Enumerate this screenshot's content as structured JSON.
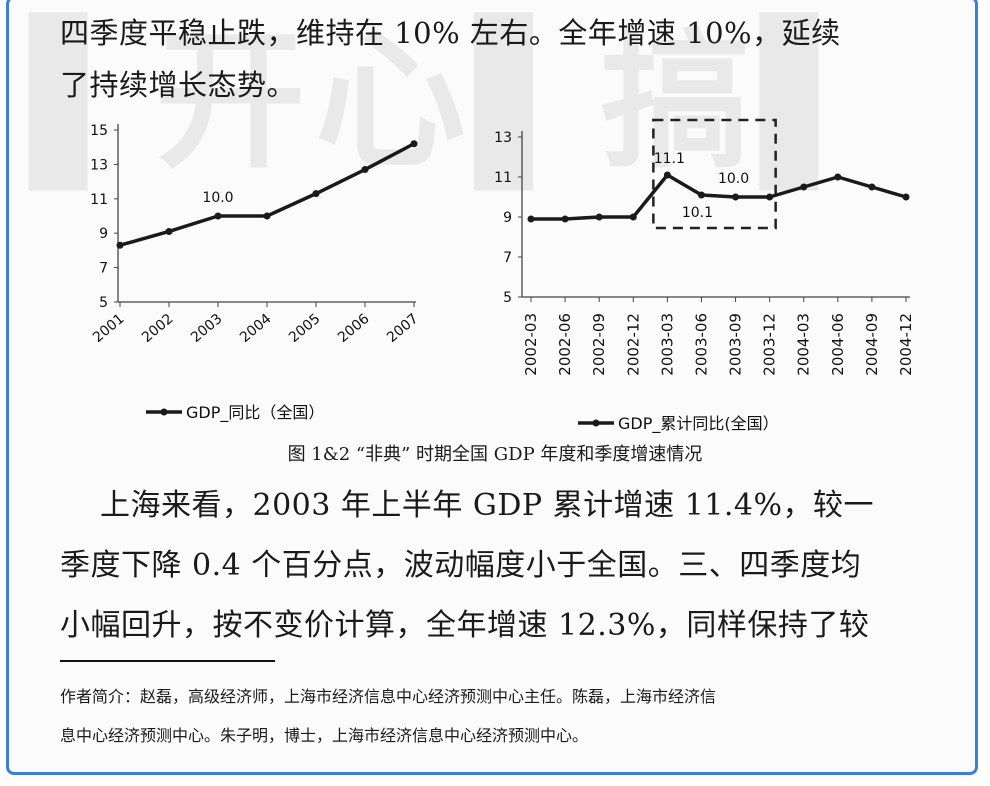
{
  "body_top": {
    "line1": "四季度平稳止跌，维持在 10% 左右。全年增速 10%，延续",
    "line2": "了持续增长态势。"
  },
  "caption": "图 1&2 “非典” 时期全国 GDP 年度和季度增速情况",
  "body_bottom": {
    "line1": "上海来看，2003 年上半年 GDP 累计增速 11.4%，较一",
    "line2": "季度下降 0.4 个百分点，波动幅度小于全国。三、四季度均",
    "line3": "小幅回升，按不变价计算，全年增速 12.3%，同样保持了较"
  },
  "footnote": {
    "line1": "作者简介：赵磊，高级经济师，上海市经济信息中心经济预测中心主任。陈磊，上海市经济信",
    "line2": "息中心经济预测中心。朱子明，博士，上海市经济信息中心经济预测中心。"
  },
  "colors": {
    "frame": "#3d7fd6",
    "ink": "#1a1a1a"
  },
  "chart_data": [
    {
      "type": "line",
      "categories": [
        "2001",
        "2002",
        "2003",
        "2004",
        "2005",
        "2006",
        "2007"
      ],
      "series": [
        {
          "name": "GDP_同比（全国）",
          "values": [
            8.3,
            9.1,
            10.0,
            10.0,
            11.3,
            12.7,
            14.2
          ]
        }
      ],
      "annotations": [
        {
          "index": 2,
          "label": "10.0"
        }
      ],
      "yticks": [
        "5",
        "7",
        "9",
        "11",
        "13",
        "15"
      ],
      "ylim": [
        5,
        15
      ],
      "legend_position": "bottom",
      "grid": false
    },
    {
      "type": "line",
      "categories": [
        "2002-03",
        "2002-06",
        "2002-09",
        "2002-12",
        "2003-03",
        "2003-06",
        "2003-09",
        "2003-12",
        "2004-03",
        "2004-06",
        "2004-09",
        "2004-12"
      ],
      "series": [
        {
          "name": "GDP_累计同比(全国）",
          "values": [
            8.9,
            8.9,
            9.0,
            9.0,
            11.1,
            10.1,
            10.0,
            10.0,
            10.5,
            11.0,
            10.5,
            10.0
          ]
        }
      ],
      "annotations": [
        {
          "index": 4,
          "label": "11.1"
        },
        {
          "index": 5,
          "label": "10.1"
        },
        {
          "index": 6,
          "label": "10.0"
        }
      ],
      "yticks": [
        "5",
        "7",
        "9",
        "11",
        "13"
      ],
      "ylim": [
        5,
        13
      ],
      "legend_position": "bottom",
      "grid": false,
      "highlight_box": {
        "from_index": 4,
        "to_index": 7,
        "style": "dashed"
      }
    }
  ]
}
